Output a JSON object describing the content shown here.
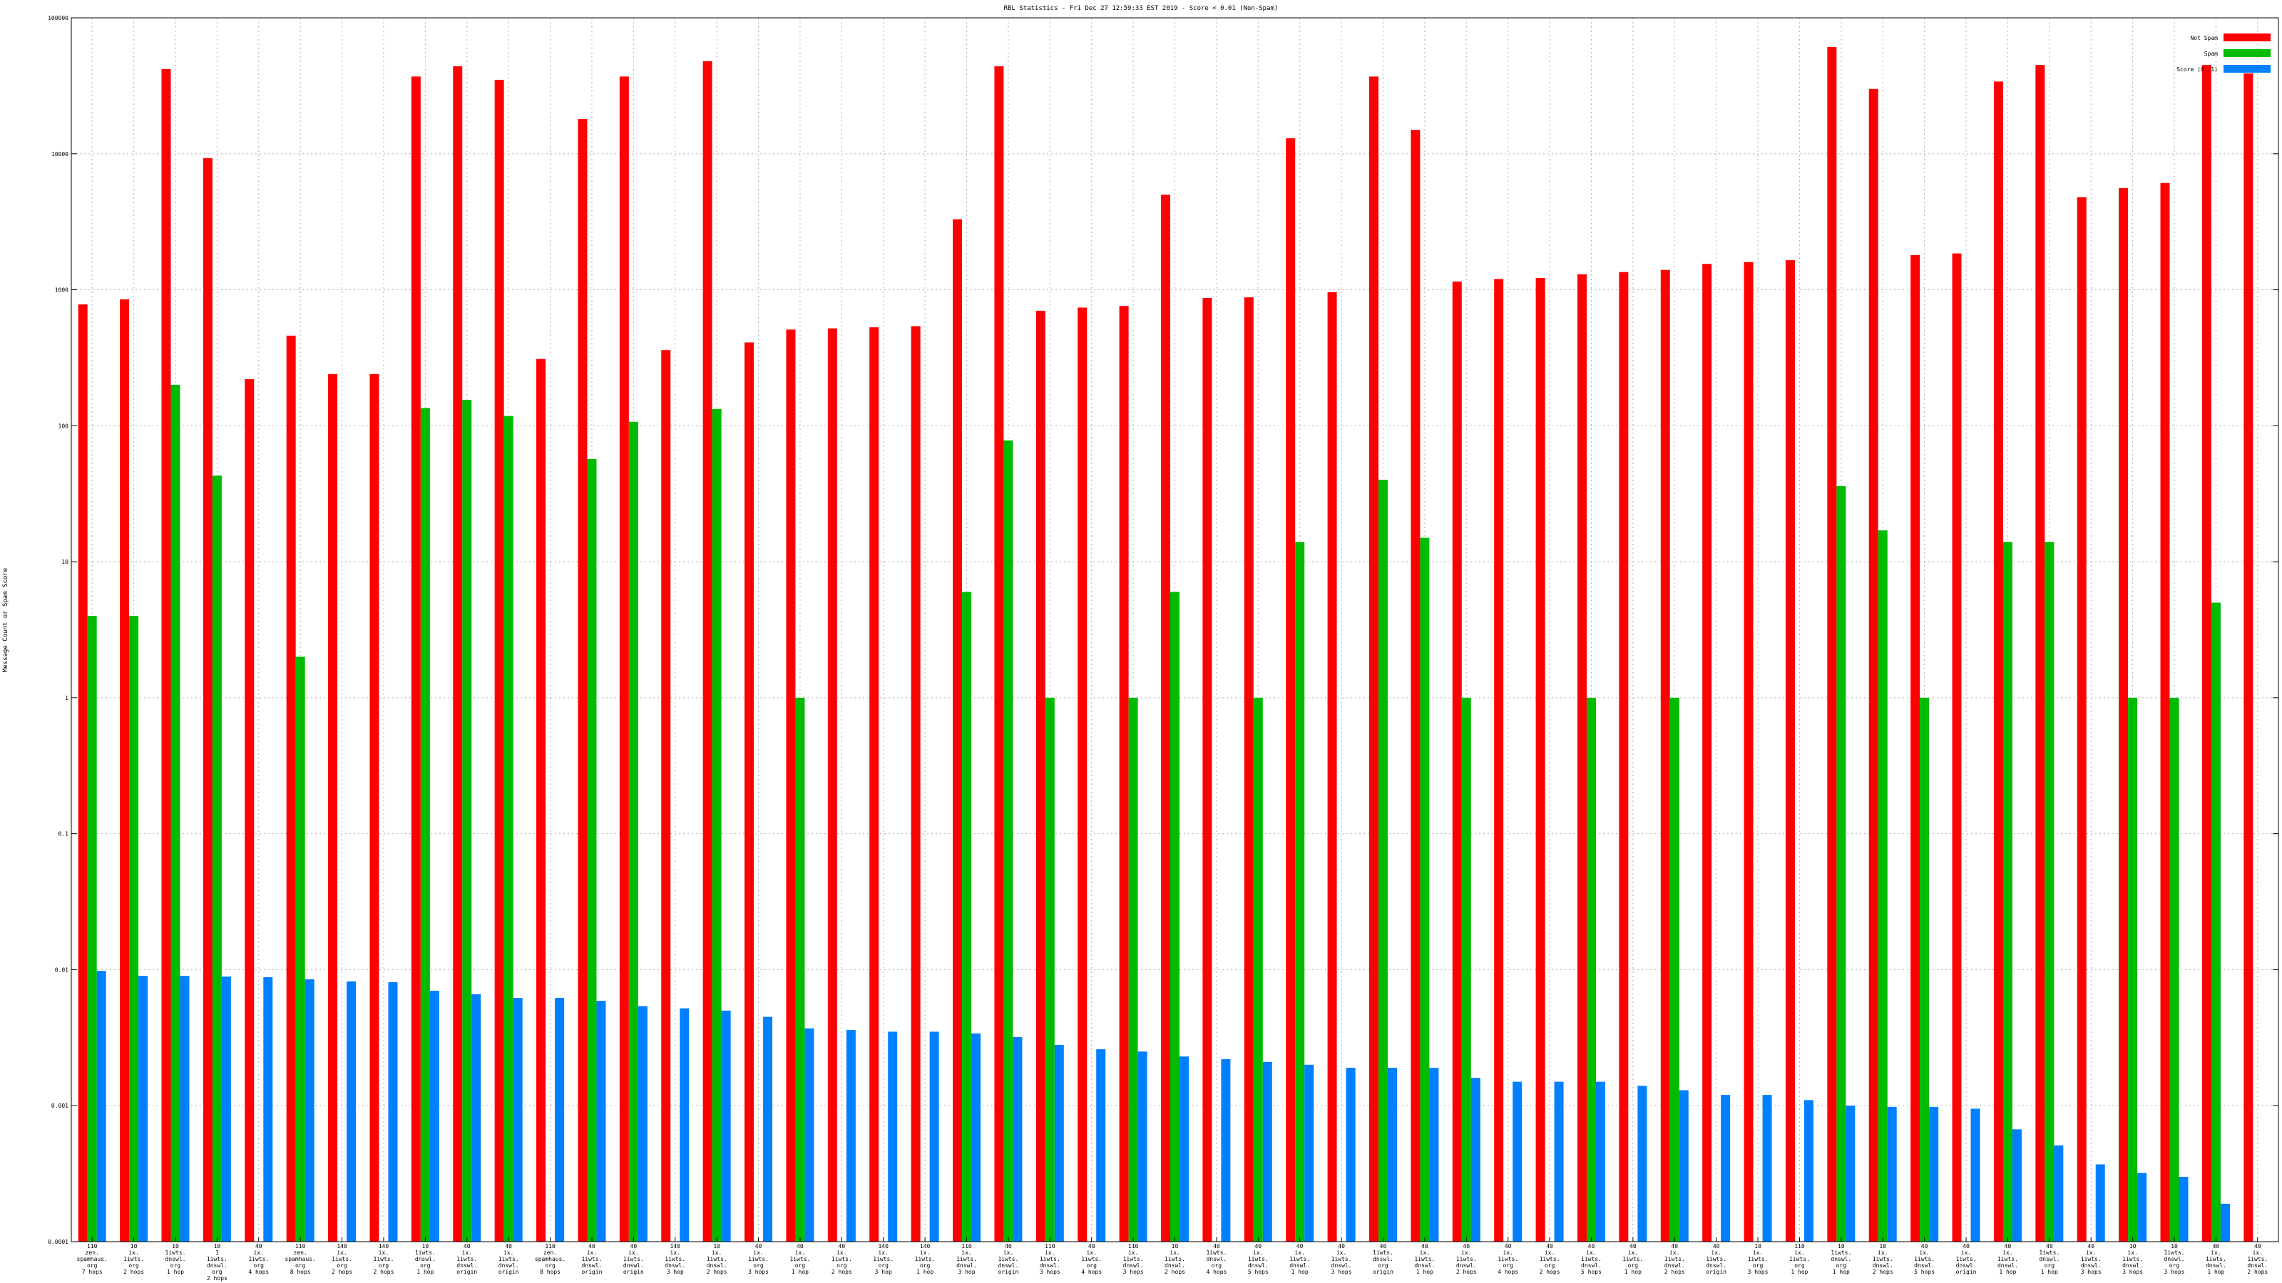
{
  "chart_data": {
    "type": "bar",
    "title": "RBL Statistics - Fri Dec 27 12:59:33 EST 2019 - Score < 0.01 (Non-Spam)",
    "ylabel": "Message Count or Spam Score",
    "xlabel": "",
    "yscale": "log",
    "ylim": [
      0.0001,
      100000
    ],
    "grid": true,
    "legend_position": "top-right",
    "y_ticks": [
      "0.0001",
      "0.001",
      "0.01",
      "0.1",
      "1",
      "10",
      "100",
      "1000",
      "10000",
      "100000"
    ],
    "categories": [
      [
        "110",
        "zen.",
        "spamhaus.",
        "org",
        "7 hops"
      ],
      [
        "10",
        "ix.",
        "1iwts.",
        "org",
        "2 hops"
      ],
      [
        "10",
        "1iwts.",
        "dnswl.",
        "org",
        "1 hop"
      ],
      [
        "10",
        "1",
        "1iwts.",
        "dnswl.",
        "org",
        "2 hops"
      ],
      [
        "40",
        "ix.",
        "1iwts.",
        "org",
        "4 hops"
      ],
      [
        "110",
        "zen.",
        "spamhaus.",
        "org",
        "8 hops"
      ],
      [
        "140",
        "ix.",
        "1iwts.",
        "org",
        "2 hops"
      ],
      [
        "140",
        "ix.",
        "1iwts.",
        "org",
        "2 hops"
      ],
      [
        "10",
        "1iwts.",
        "dnswl.",
        "org",
        "1 hop"
      ],
      [
        "40",
        "ix.",
        "1iwts.",
        "dnswl.",
        "origin"
      ],
      [
        "40",
        "ix.",
        "1iwts.",
        "dnswl.",
        "origin"
      ],
      [
        "110",
        "zen.",
        "spamhaus.",
        "org",
        "8 hops"
      ],
      [
        "40",
        "ix.",
        "1iwts.",
        "dnswl.",
        "origin"
      ],
      [
        "40",
        "ix.",
        "1iwts.",
        "dnswl.",
        "origin"
      ],
      [
        "140",
        "ix.",
        "1iwts.",
        "dnswl.",
        "3 hop"
      ],
      [
        "10",
        "ix.",
        "1iwts.",
        "dnswl.",
        "2 hops"
      ],
      [
        "40",
        "ix.",
        "1iwts.",
        "org",
        "3 hops"
      ],
      [
        "40",
        "ix.",
        "1iwts.",
        "org",
        "1 hop"
      ],
      [
        "40",
        "ix.",
        "1iwts.",
        "org",
        "2 hops"
      ],
      [
        "140",
        "ix.",
        "1iwts.",
        "org",
        "3 hop"
      ],
      [
        "140",
        "ix.",
        "1iwts.",
        "org",
        "1 hop"
      ],
      [
        "110",
        "ix.",
        "1iwts.",
        "dnswl.",
        "3 hop"
      ],
      [
        "40",
        "ix.",
        "1iwts.",
        "dnswl.",
        "origin"
      ],
      [
        "110",
        "ix.",
        "1iwts.",
        "dnswl.",
        "3 hops"
      ],
      [
        "40",
        "ix.",
        "1iwts.",
        "org",
        "4 hops"
      ],
      [
        "110",
        "ix.",
        "1iwts.",
        "dnswl.",
        "3 hops"
      ],
      [
        "10",
        "ix.",
        "1iwts.",
        "dnswl.",
        "2 hops"
      ],
      [
        "40",
        "1iwts.",
        "dnswl.",
        "org",
        "4 hops"
      ],
      [
        "40",
        "ix.",
        "1iwts.",
        "dnswl.",
        "5 hops"
      ],
      [
        "40",
        "ix.",
        "1iwts.",
        "dnswl.",
        "1 hop"
      ],
      [
        "40",
        "ix.",
        "1iwts.",
        "dnswl.",
        "3 hops"
      ],
      [
        "40",
        "1iwts.",
        "dnswl.",
        "org",
        "origin"
      ],
      [
        "40",
        "ix.",
        "1iwts.",
        "dnswl.",
        "1 hop"
      ],
      [
        "40",
        "ix.",
        "1iwts.",
        "dnswl.",
        "2 hops"
      ],
      [
        "40",
        "ix.",
        "1iwts.",
        "org",
        "4 hops"
      ],
      [
        "40",
        "ix.",
        "1iwts.",
        "org",
        "2 hops"
      ],
      [
        "40",
        "ix.",
        "1iwts.",
        "dnswl.",
        "5 hops"
      ],
      [
        "40",
        "ix.",
        "1iwts.",
        "org",
        "1 hop"
      ],
      [
        "40",
        "ix.",
        "1iwts.",
        "dnswl.",
        "2 hops"
      ],
      [
        "40",
        "ix.",
        "1iwts.",
        "dnswl.",
        "origin"
      ],
      [
        "10",
        "ix.",
        "1iwts.",
        "org",
        "3 hops"
      ],
      [
        "110",
        "ix.",
        "1iwts.",
        "org",
        "1 hop"
      ],
      [
        "10",
        "1iwts.",
        "dnswl.",
        "org",
        "1 hop"
      ],
      [
        "10",
        "ix.",
        "1iwts.",
        "dnswl.",
        "2 hops"
      ],
      [
        "40",
        "ix.",
        "1iwts.",
        "dnswl.",
        "5 hops"
      ],
      [
        "40",
        "ix.",
        "1iwts.",
        "dnswl.",
        "origin"
      ],
      [
        "40",
        "ix.",
        "1iwts.",
        "dnswl.",
        "1 hop"
      ],
      [
        "40",
        "1iwts.",
        "dnswl.",
        "org",
        "1 hop"
      ],
      [
        "40",
        "ix.",
        "1iwts.",
        "dnswl.",
        "3 hops"
      ],
      [
        "10",
        "ix.",
        "1iwts.",
        "dnswl.",
        "3 hops"
      ],
      [
        "10",
        "1iwts.",
        "dnswl.",
        "org",
        "3 hops"
      ],
      [
        "40",
        "ix.",
        "1iwts.",
        "dnswl.",
        "1 hop"
      ],
      [
        "40",
        "ix.",
        "1iwts.",
        "dnswl.",
        "2 hops"
      ]
    ],
    "series": [
      {
        "name": "Not Spam",
        "color": "#ff0000",
        "values": [
          780,
          850,
          42000,
          9300,
          220,
          460,
          240,
          240,
          37000,
          44000,
          35000,
          310,
          18000,
          37000,
          360,
          48000,
          410,
          510,
          520,
          530,
          540,
          3300,
          44000,
          700,
          740,
          760,
          5000,
          870,
          880,
          13000,
          960,
          37000,
          15000,
          1150,
          1200,
          1220,
          1300,
          1350,
          1400,
          1550,
          1600,
          1650,
          61000,
          30000,
          1800,
          1850,
          34000,
          45000,
          4800,
          5600,
          6100,
          45000,
          39000
        ]
      },
      {
        "name": "Spam",
        "color": "#00bb00",
        "values": [
          4,
          4,
          200,
          43,
          null,
          2,
          null,
          null,
          135,
          155,
          118,
          null,
          57,
          107,
          null,
          133,
          null,
          1,
          null,
          null,
          null,
          6,
          78,
          1,
          null,
          1,
          6,
          null,
          1,
          14,
          null,
          40,
          15,
          1,
          null,
          null,
          1,
          null,
          1,
          null,
          null,
          null,
          36,
          17,
          1,
          null,
          14,
          14,
          null,
          1,
          1,
          5,
          null
        ]
      },
      {
        "name": "Score (0..1)",
        "color": "#0080ff",
        "values": [
          0.0098,
          0.009,
          0.009,
          0.0089,
          0.0088,
          0.0085,
          0.0082,
          0.0081,
          0.007,
          0.0066,
          0.0062,
          0.0062,
          0.0059,
          0.0054,
          0.0052,
          0.005,
          0.0045,
          0.0037,
          0.0036,
          0.0035,
          0.0035,
          0.0034,
          0.0032,
          0.0028,
          0.0026,
          0.0025,
          0.0023,
          0.0022,
          0.0021,
          0.002,
          0.0019,
          0.0019,
          0.0019,
          0.0016,
          0.0015,
          0.0015,
          0.0015,
          0.0014,
          0.0013,
          0.0012,
          0.0012,
          0.0011,
          0.001,
          0.00098,
          0.00098,
          0.00095,
          0.00067,
          0.00051,
          0.00037,
          0.00032,
          0.0003,
          0.00019,
          null
        ]
      }
    ]
  }
}
